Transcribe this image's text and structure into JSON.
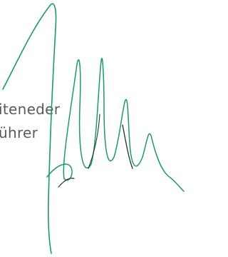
{
  "text": {
    "line1": "iteneder",
    "line2": "ührer"
  }
}
